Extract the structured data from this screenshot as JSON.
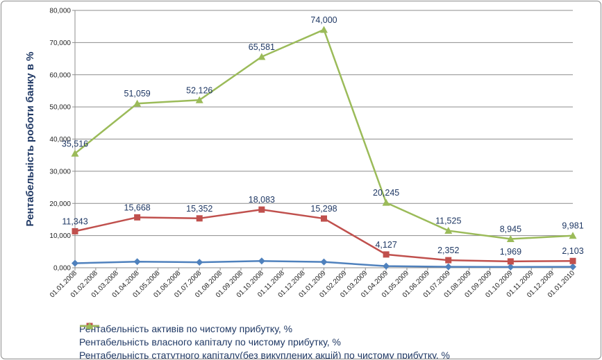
{
  "chart_data": {
    "type": "line",
    "ylabel": "Рентабельність роботи банку в %",
    "xlabel": "",
    "ylim": [
      0,
      80
    ],
    "yticks": [
      "0,000",
      "10,000",
      "20,000",
      "30,000",
      "40,000",
      "50,000",
      "60,000",
      "70,000",
      "80,000"
    ],
    "categories": [
      "01.01.2008",
      "01.02.2008",
      "01.03.2008",
      "01.04.2008",
      "01.05.2008",
      "01.06.2008",
      "01.07.2008",
      "01.08.2008",
      "01.09.2008",
      "01.10.2008",
      "01.11.2008",
      "01.12.2008",
      "01.01.2009",
      "01.02.2009",
      "01.03.2009",
      "01.04.2009",
      "01.05.2009",
      "01.06.2009",
      "01.07.2009",
      "01.08.2009",
      "01.09.2009",
      "01.10.2009",
      "01.11.2009",
      "01.12.2009",
      "01.01.2010"
    ],
    "grid": true,
    "legend_position": "bottom",
    "series": [
      {
        "name": "Рентабельність активів по чистому прибутку, %",
        "color": "#4f81bd",
        "marker": "diamond",
        "points": [
          {
            "x": "01.01.2008",
            "y": 1.4
          },
          {
            "x": "01.04.2008",
            "y": 1.9
          },
          {
            "x": "01.07.2008",
            "y": 1.7
          },
          {
            "x": "01.10.2008",
            "y": 2.1
          },
          {
            "x": "01.01.2009",
            "y": 1.8
          },
          {
            "x": "01.04.2009",
            "y": 0.5
          },
          {
            "x": "01.07.2009",
            "y": 0.3
          },
          {
            "x": "01.10.2009",
            "y": 0.25
          },
          {
            "x": "01.01.2010",
            "y": 0.3
          }
        ],
        "labels": []
      },
      {
        "name": "Рентабельність власного капіталу по чистому прибутку, %",
        "color": "#c0504d",
        "marker": "square",
        "points": [
          {
            "x": "01.01.2008",
            "y": 11.343
          },
          {
            "x": "01.04.2008",
            "y": 15.668
          },
          {
            "x": "01.07.2008",
            "y": 15.352
          },
          {
            "x": "01.10.2008",
            "y": 18.083
          },
          {
            "x": "01.01.2009",
            "y": 15.298
          },
          {
            "x": "01.04.2009",
            "y": 4.127
          },
          {
            "x": "01.07.2009",
            "y": 2.352
          },
          {
            "x": "01.10.2009",
            "y": 1.969
          },
          {
            "x": "01.01.2010",
            "y": 2.103
          }
        ],
        "labels": [
          "11,343",
          "15,668",
          "15,352",
          "18,083",
          "15,298",
          "4,127",
          "2,352",
          "1,969",
          "2,103"
        ]
      },
      {
        "name": "Рентабельність статутного капіталу(без викуплених акцій) по чистому прибутку, %",
        "color": "#9bbb59",
        "marker": "triangle",
        "points": [
          {
            "x": "01.01.2008",
            "y": 35.516
          },
          {
            "x": "01.04.2008",
            "y": 51.059
          },
          {
            "x": "01.07.2008",
            "y": 52.126
          },
          {
            "x": "01.10.2008",
            "y": 65.581
          },
          {
            "x": "01.01.2009",
            "y": 74.0
          },
          {
            "x": "01.04.2009",
            "y": 20.245
          },
          {
            "x": "01.07.2009",
            "y": 11.525
          },
          {
            "x": "01.10.2009",
            "y": 8.945
          },
          {
            "x": "01.01.2010",
            "y": 9.981
          }
        ],
        "labels": [
          "35,516",
          "51,059",
          "52,126",
          "65,581",
          "74,000",
          "20,245",
          "11,525",
          "8,945",
          "9,981"
        ]
      }
    ]
  }
}
